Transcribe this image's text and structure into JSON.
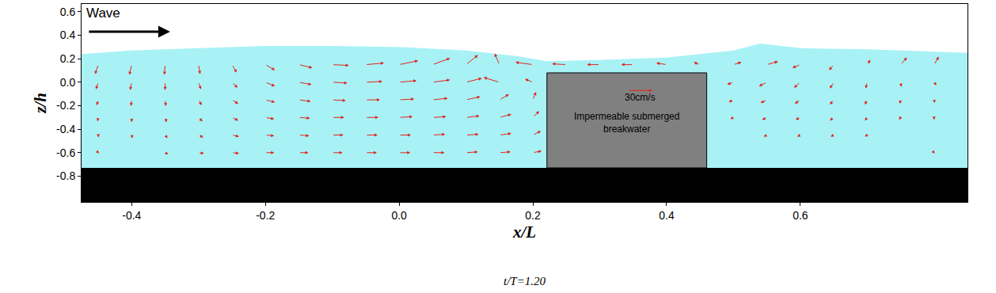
{
  "chart_data": {
    "type": "vector_field",
    "x_label": "x/L",
    "y_label": "z/h",
    "caption": "t/T=1.20",
    "wave_label": "Wave",
    "grid": false,
    "xlim": [
      -0.475,
      0.85
    ],
    "ylim": [
      -1.02,
      0.667
    ],
    "xticks": [
      -0.4,
      -0.2,
      {
        "value": 0,
        "label": "0.0"
      },
      0.2,
      0.4,
      0.6
    ],
    "yticks": [
      0.6,
      0.4,
      0.2,
      {
        "value": 0,
        "label": "0.0"
      },
      -0.2,
      -0.4,
      -0.6,
      -0.8
    ],
    "surface": {
      "x": [
        -0.475,
        -0.4,
        -0.3,
        -0.2,
        -0.1,
        0.0,
        0.1,
        0.18,
        0.22,
        0.3,
        0.4,
        0.5,
        0.54,
        0.6,
        0.7,
        0.85
      ],
      "z": [
        0.24,
        0.27,
        0.29,
        0.31,
        0.31,
        0.3,
        0.27,
        0.22,
        0.18,
        0.19,
        0.21,
        0.27,
        0.33,
        0.29,
        0.28,
        0.25
      ],
      "color": "#a8f2f6"
    },
    "bed": {
      "z": -0.73,
      "color": "#000000"
    },
    "breakwater": {
      "x": [
        0.221,
        0.46
      ],
      "top": 0.08,
      "color": "#808080",
      "label": [
        "Impermeable submerged",
        "breakwater"
      ]
    },
    "vectors": {
      "color": "#e3241b",
      "scale": {
        "value": 30,
        "label": "30cm/s"
      },
      "x": [
        -0.45,
        -0.4,
        -0.35,
        -0.3,
        -0.25,
        -0.2,
        -0.15,
        -0.1,
        -0.05,
        0.0,
        0.05,
        0.1,
        0.15,
        0.2,
        0.25,
        0.3,
        0.35,
        0.4,
        0.45,
        0.5,
        0.55,
        0.6,
        0.65,
        0.7,
        0.75,
        0.8
      ],
      "rows": [
        {
          "z": 0.15,
          "u": [
            -4,
            -3,
            -1,
            2,
            6,
            12,
            17,
            21,
            23,
            24,
            22,
            15,
            -6,
            -22,
            -18,
            -16,
            -15,
            -13,
            -8,
            10,
            14,
            -10,
            -6,
            4,
            8,
            6
          ],
          "w": [
            -12,
            -13,
            -13,
            -12,
            -10,
            -7,
            -4,
            -1,
            2,
            5,
            8,
            12,
            14,
            3,
            1,
            0,
            0,
            2,
            3,
            3,
            4,
            -4,
            -7,
            6,
            9,
            10
          ]
        },
        {
          "z": 0.0,
          "u": [
            -3,
            -2,
            0,
            3,
            7,
            12,
            16,
            19,
            21,
            22,
            22,
            20,
            -20,
            -10,
            null,
            null,
            null,
            null,
            null,
            -8,
            -10,
            -8,
            -5,
            -2,
            1,
            3
          ],
          "w": [
            -9,
            -10,
            -10,
            -9,
            -7,
            -5,
            -3,
            -1,
            1,
            2,
            3,
            5,
            6,
            4,
            null,
            null,
            null,
            null,
            null,
            -3,
            -5,
            -7,
            -8,
            -8,
            -6,
            -4
          ]
        },
        {
          "z": -0.15,
          "u": [
            -2,
            -1,
            1,
            4,
            8,
            12,
            15,
            17,
            18,
            19,
            19,
            18,
            12,
            4,
            null,
            null,
            null,
            null,
            null,
            -6,
            -8,
            -7,
            -5,
            -3,
            -1,
            1
          ],
          "w": [
            -7,
            -8,
            -8,
            -7,
            -5,
            -3,
            -2,
            -1,
            0,
            1,
            2,
            4,
            7,
            10,
            null,
            null,
            null,
            null,
            null,
            -3,
            -4,
            -5,
            -6,
            -6,
            -5,
            -4
          ]
        },
        {
          "z": -0.3,
          "u": [
            -1,
            0,
            2,
            5,
            8,
            11,
            14,
            15,
            16,
            17,
            17,
            17,
            15,
            8,
            null,
            null,
            null,
            null,
            null,
            -4,
            -6,
            -6,
            -5,
            -3,
            -2,
            0
          ],
          "w": [
            -5,
            -6,
            -6,
            -5,
            -4,
            -2,
            -1,
            0,
            0,
            1,
            1,
            2,
            4,
            8,
            null,
            null,
            null,
            null,
            null,
            -2,
            -3,
            -3,
            -4,
            -4,
            -3,
            -3
          ]
        },
        {
          "z": -0.45,
          "u": [
            0,
            1,
            3,
            6,
            9,
            11,
            13,
            14,
            15,
            15,
            16,
            16,
            15,
            10,
            null,
            null,
            null,
            null,
            null,
            -2,
            -4,
            -4,
            -4,
            -3,
            -2,
            -1
          ],
          "w": [
            -3,
            -4,
            -4,
            -3,
            -2,
            -1,
            -1,
            0,
            0,
            0,
            1,
            1,
            2,
            5,
            null,
            null,
            null,
            null,
            null,
            -1,
            -2,
            -2,
            -2,
            -2,
            -2,
            -2
          ]
        },
        {
          "z": -0.6,
          "u": [
            1,
            2,
            4,
            7,
            9,
            11,
            12,
            13,
            14,
            14,
            15,
            15,
            14,
            11,
            null,
            null,
            null,
            null,
            null,
            2,
            1,
            0,
            -1,
            -1,
            0,
            1
          ],
          "w": [
            -1,
            -2,
            -2,
            -1,
            -1,
            0,
            0,
            0,
            0,
            0,
            0,
            1,
            1,
            2,
            null,
            null,
            null,
            null,
            null,
            0,
            0,
            -1,
            -1,
            -1,
            -1,
            -1
          ]
        }
      ]
    }
  }
}
